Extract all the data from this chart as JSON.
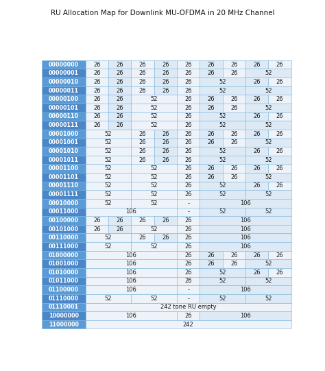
{
  "title": "RU Allocation Map for Downlink MU-OFDMA in 20 MHz Channel",
  "rows": [
    {
      "label": "00000000",
      "cells": [
        [
          "26",
          1
        ],
        [
          "26",
          1
        ],
        [
          "26",
          1
        ],
        [
          "26",
          1
        ],
        [
          "26",
          1
        ],
        [
          "26",
          1
        ],
        [
          "26",
          1
        ],
        [
          "26",
          1
        ],
        [
          "26",
          1
        ]
      ]
    },
    {
      "label": "00000001",
      "cells": [
        [
          "26",
          1
        ],
        [
          "26",
          1
        ],
        [
          "26",
          1
        ],
        [
          "26",
          1
        ],
        [
          "26",
          1
        ],
        [
          "26",
          1
        ],
        [
          "26",
          1
        ],
        [
          "52",
          2
        ]
      ]
    },
    {
      "label": "00000010",
      "cells": [
        [
          "26",
          1
        ],
        [
          "26",
          1
        ],
        [
          "26",
          1
        ],
        [
          "26",
          1
        ],
        [
          "26",
          1
        ],
        [
          "52",
          2
        ],
        [
          "26",
          1
        ],
        [
          "26",
          1
        ]
      ]
    },
    {
      "label": "00000011",
      "cells": [
        [
          "26",
          1
        ],
        [
          "26",
          1
        ],
        [
          "26",
          1
        ],
        [
          "26",
          1
        ],
        [
          "26",
          1
        ],
        [
          "52",
          2
        ],
        [
          "52",
          2
        ]
      ]
    },
    {
      "label": "00000100",
      "cells": [
        [
          "26",
          1
        ],
        [
          "26",
          1
        ],
        [
          "52",
          2
        ],
        [
          "26",
          1
        ],
        [
          "26",
          1
        ],
        [
          "26",
          1
        ],
        [
          "26",
          1
        ],
        [
          "26",
          1
        ]
      ]
    },
    {
      "label": "00000101",
      "cells": [
        [
          "26",
          1
        ],
        [
          "26",
          1
        ],
        [
          "52",
          2
        ],
        [
          "26",
          1
        ],
        [
          "26",
          1
        ],
        [
          "26",
          1
        ],
        [
          "52",
          2
        ]
      ]
    },
    {
      "label": "00000110",
      "cells": [
        [
          "26",
          1
        ],
        [
          "26",
          1
        ],
        [
          "52",
          2
        ],
        [
          "26",
          1
        ],
        [
          "52",
          2
        ],
        [
          "26",
          1
        ],
        [
          "26",
          1
        ]
      ]
    },
    {
      "label": "00000111",
      "cells": [
        [
          "26",
          1
        ],
        [
          "26",
          1
        ],
        [
          "52",
          2
        ],
        [
          "26",
          1
        ],
        [
          "52",
          2
        ],
        [
          "52",
          2
        ]
      ]
    },
    {
      "label": "00001000",
      "cells": [
        [
          "52",
          2
        ],
        [
          "26",
          1
        ],
        [
          "26",
          1
        ],
        [
          "26",
          1
        ],
        [
          "26",
          1
        ],
        [
          "26",
          1
        ],
        [
          "26",
          1
        ],
        [
          "26",
          1
        ]
      ]
    },
    {
      "label": "00001001",
      "cells": [
        [
          "52",
          2
        ],
        [
          "26",
          1
        ],
        [
          "26",
          1
        ],
        [
          "26",
          1
        ],
        [
          "26",
          1
        ],
        [
          "26",
          1
        ],
        [
          "52",
          2
        ]
      ]
    },
    {
      "label": "00001010",
      "cells": [
        [
          "52",
          2
        ],
        [
          "26",
          1
        ],
        [
          "26",
          1
        ],
        [
          "26",
          1
        ],
        [
          "52",
          2
        ],
        [
          "26",
          1
        ],
        [
          "26",
          1
        ]
      ]
    },
    {
      "label": "00001011",
      "cells": [
        [
          "52",
          2
        ],
        [
          "26",
          1
        ],
        [
          "26",
          1
        ],
        [
          "26",
          1
        ],
        [
          "52",
          2
        ],
        [
          "52",
          2
        ]
      ]
    },
    {
      "label": "00001100",
      "cells": [
        [
          "52",
          2
        ],
        [
          "52",
          2
        ],
        [
          "26",
          1
        ],
        [
          "26",
          1
        ],
        [
          "26",
          1
        ],
        [
          "26",
          1
        ],
        [
          "26",
          1
        ]
      ]
    },
    {
      "label": "00001101",
      "cells": [
        [
          "52",
          2
        ],
        [
          "52",
          2
        ],
        [
          "26",
          1
        ],
        [
          "26",
          1
        ],
        [
          "26",
          1
        ],
        [
          "52",
          2
        ]
      ]
    },
    {
      "label": "00001110",
      "cells": [
        [
          "52",
          2
        ],
        [
          "52",
          2
        ],
        [
          "26",
          1
        ],
        [
          "52",
          2
        ],
        [
          "26",
          1
        ],
        [
          "26",
          1
        ]
      ]
    },
    {
      "label": "00001111",
      "cells": [
        [
          "52",
          2
        ],
        [
          "52",
          2
        ],
        [
          "26",
          1
        ],
        [
          "52",
          2
        ],
        [
          "52",
          2
        ]
      ]
    },
    {
      "label": "00010000",
      "cells": [
        [
          "52",
          2
        ],
        [
          "52",
          2
        ],
        [
          "-",
          1
        ],
        [
          "106",
          4
        ]
      ]
    },
    {
      "label": "00011000",
      "cells": [
        [
          "106",
          4
        ],
        [
          "-",
          1
        ],
        [
          "52",
          2
        ],
        [
          "52",
          2
        ]
      ]
    },
    {
      "label": "00100000",
      "cells": [
        [
          "26",
          1
        ],
        [
          "26",
          1
        ],
        [
          "26",
          1
        ],
        [
          "26",
          1
        ],
        [
          "26",
          1
        ],
        [
          "106",
          4
        ]
      ]
    },
    {
      "label": "00101000",
      "cells": [
        [
          "26",
          1
        ],
        [
          "26",
          1
        ],
        [
          "52",
          2
        ],
        [
          "26",
          1
        ],
        [
          "106",
          4
        ]
      ]
    },
    {
      "label": "00110000",
      "cells": [
        [
          "52",
          2
        ],
        [
          "26",
          1
        ],
        [
          "26",
          1
        ],
        [
          "26",
          1
        ],
        [
          "106",
          4
        ]
      ]
    },
    {
      "label": "00111000",
      "cells": [
        [
          "52",
          2
        ],
        [
          "52",
          2
        ],
        [
          "26",
          1
        ],
        [
          "106",
          4
        ]
      ]
    },
    {
      "label": "01000000",
      "cells": [
        [
          "106",
          4
        ],
        [
          "26",
          1
        ],
        [
          "26",
          1
        ],
        [
          "26",
          1
        ],
        [
          "26",
          1
        ],
        [
          "26",
          1
        ]
      ]
    },
    {
      "label": "01001000",
      "cells": [
        [
          "106",
          4
        ],
        [
          "26",
          1
        ],
        [
          "26",
          1
        ],
        [
          "26",
          1
        ],
        [
          "52",
          2
        ]
      ]
    },
    {
      "label": "01010000",
      "cells": [
        [
          "106",
          4
        ],
        [
          "26",
          1
        ],
        [
          "52",
          2
        ],
        [
          "26",
          1
        ],
        [
          "26",
          1
        ]
      ]
    },
    {
      "label": "01011000",
      "cells": [
        [
          "106",
          4
        ],
        [
          "26",
          1
        ],
        [
          "52",
          2
        ],
        [
          "52",
          2
        ]
      ]
    },
    {
      "label": "01100000",
      "cells": [
        [
          "106",
          4
        ],
        [
          "-",
          1
        ],
        [
          "106",
          4
        ]
      ]
    },
    {
      "label": "01110000",
      "cells": [
        [
          "52",
          2
        ],
        [
          "52",
          2
        ],
        [
          "-",
          1
        ],
        [
          "52",
          2
        ],
        [
          "52",
          2
        ]
      ]
    },
    {
      "label": "01110001",
      "cells": [
        [
          "242 tone RU empty",
          9
        ]
      ]
    },
    {
      "label": "10000000",
      "cells": [
        [
          "106",
          4
        ],
        [
          "26",
          1
        ],
        [
          "106",
          4
        ]
      ]
    },
    {
      "label": "11000000",
      "cells": [
        [
          "242",
          9
        ]
      ]
    }
  ],
  "row_header_bg_odd": "#5B9BD5",
  "row_header_bg_even": "#4A86C8",
  "row_header_text": "#FFFFFF",
  "cell_bg_light": "#EEF3FA",
  "cell_bg_dark": "#DDEAF6",
  "cell_text": "#1a1a1a",
  "border_color": "#7AB4DC",
  "title_fontsize": 7.5,
  "label_fontsize": 5.8,
  "cell_fontsize": 6.0,
  "n_cols": 9,
  "fig_w": 4.74,
  "fig_h": 5.41,
  "dpi": 100
}
